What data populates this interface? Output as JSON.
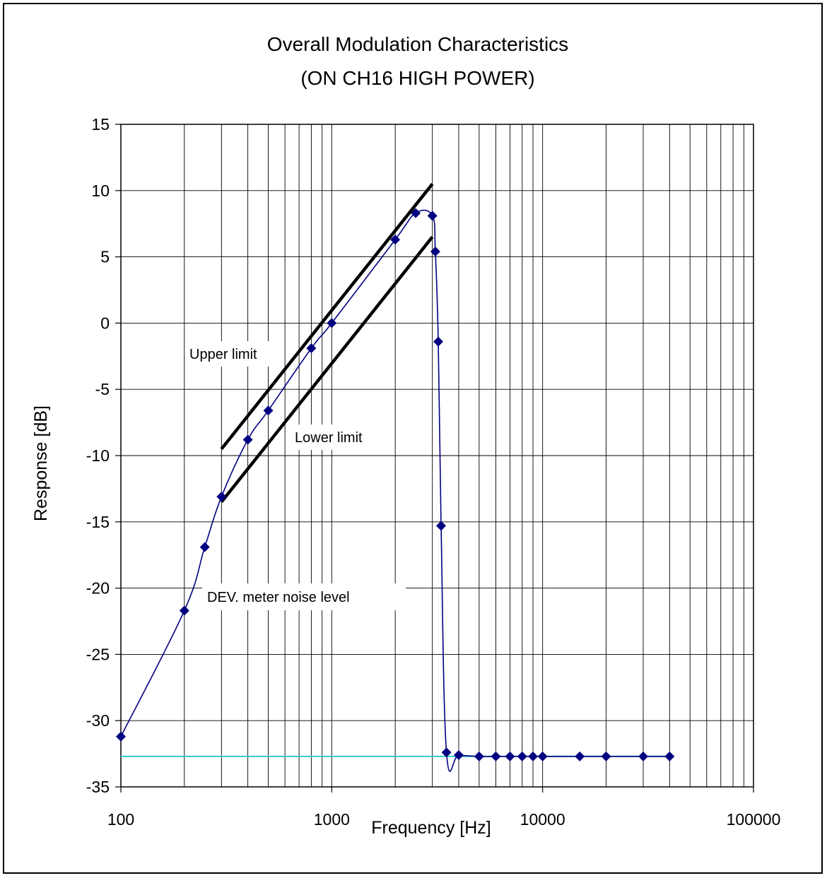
{
  "chart_data": {
    "type": "line",
    "title": "Overall Modulation Characteristics",
    "subtitle": "(ON CH16 HIGH POWER)",
    "xlabel": "Frequency [Hz]",
    "ylabel": "Response [dB]",
    "x_scale": "log",
    "xlim": [
      100,
      100000
    ],
    "ylim": [
      -35,
      15
    ],
    "x_ticks": [
      100,
      1000,
      10000,
      100000
    ],
    "x_tick_labels": [
      "100",
      "1000",
      "10000",
      "100000"
    ],
    "y_ticks": [
      15,
      10,
      5,
      0,
      -5,
      -10,
      -15,
      -20,
      -25,
      -30,
      -35
    ],
    "y_tick_labels": [
      "15",
      "10",
      "5",
      "0",
      "-5",
      "-10",
      "-15",
      "-20",
      "-25",
      "-30",
      "-35"
    ],
    "grid": true,
    "colors": {
      "measured": "#000080",
      "limits": "#000000",
      "noise": "#33cccc"
    },
    "series": [
      {
        "kind": "measured",
        "x": [
          100,
          200,
          250,
          300,
          400,
          500,
          800,
          1000,
          2000,
          2500,
          3000,
          3100,
          3200,
          3300,
          3500,
          4000,
          5000,
          6000,
          7000,
          8000,
          9000,
          10000,
          15000,
          20000,
          30000,
          40000
        ],
        "y": [
          -31.2,
          -21.7,
          -16.9,
          -13.1,
          -8.8,
          -6.6,
          -1.9,
          0,
          6.3,
          8.3,
          8.1,
          5.4,
          -1.4,
          -15.3,
          -32.4,
          -32.6,
          -32.7,
          -32.7,
          -32.7,
          -32.7,
          -32.7,
          -32.7,
          -32.7,
          -32.7,
          -32.7,
          -32.7
        ]
      },
      {
        "kind": "upper-limit",
        "x": [
          300,
          3000
        ],
        "y": [
          -9.5,
          10.5
        ]
      },
      {
        "kind": "lower-limit",
        "x": [
          300,
          3000
        ],
        "y": [
          -13.5,
          6.5
        ]
      },
      {
        "kind": "noise-level",
        "x": [
          100,
          40000
        ],
        "y": [
          -32.7,
          -32.7
        ]
      }
    ],
    "annotations": [
      "Upper limit",
      "Lower limit",
      "DEV. meter noise level"
    ]
  }
}
